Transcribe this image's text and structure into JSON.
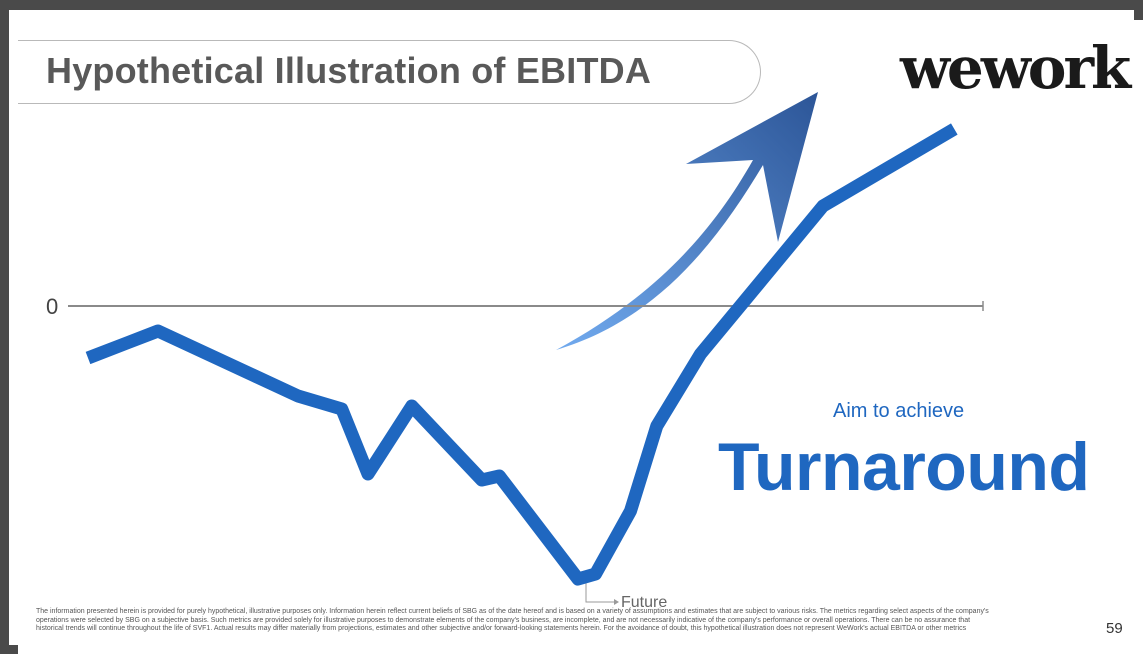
{
  "slide": {
    "title": "Hypothetical Illustration of EBITDA",
    "logo": "wework",
    "subheading": "Aim to achieve",
    "headline": "Turnaround",
    "disclaimer": "The information presented herein is provided for purely hypothetical, illustrative purposes only. Information herein reflect current beliefs of SBG as of the date hereof and is based on a variety of assumptions and estimates that are subject to various risks. The metrics regarding select aspects of the company's operations were selected by SBG on a subjective basis. Such metrics are provided solely for illustrative purposes to demonstrate elements of the company's business, are incomplete, and are not necessarily indicative of the company's performance or overall operations. There can be no assurance that historical trends will continue throughout the life of SVF1. Actual results may differ materially from projections, estimates and other subjective and/or forward-looking statements herein. For the avoidance of doubt, this hypothetical illustration does not represent WeWork's actual EBITDA or other metrics",
    "page_number": "59"
  },
  "colors": {
    "line": "#1f67c0",
    "accent_text": "#1f67c0",
    "axis": "#8a8a8a",
    "arrow_light": "#5c9ae6",
    "arrow_dark": "#2f5b9e"
  },
  "chart_data": {
    "type": "line",
    "title": "Hypothetical Illustration of EBITDA",
    "ytick_labels": [
      "0"
    ],
    "annotations": [
      "Future"
    ],
    "series": [
      {
        "points": [
          {
            "x": 0,
            "y": -52
          },
          {
            "x": 8,
            "y": -25
          },
          {
            "x": 24,
            "y": -90
          },
          {
            "x": 29,
            "y": -103
          },
          {
            "x": 32,
            "y": -168
          },
          {
            "x": 37,
            "y": -100
          },
          {
            "x": 45,
            "y": -174
          },
          {
            "x": 47,
            "y": -170
          },
          {
            "x": 56,
            "y": -273
          },
          {
            "x": 58,
            "y": -268
          },
          {
            "x": 62,
            "y": -205
          },
          {
            "x": 65,
            "y": -120
          },
          {
            "x": 70,
            "y": -48
          },
          {
            "x": 77,
            "y": 26
          },
          {
            "x": 84,
            "y": 100
          },
          {
            "x": 99,
            "y": 177
          }
        ]
      }
    ],
    "xlim": [
      0,
      100
    ],
    "ylim": [
      -290,
      200
    ],
    "grid": false
  }
}
